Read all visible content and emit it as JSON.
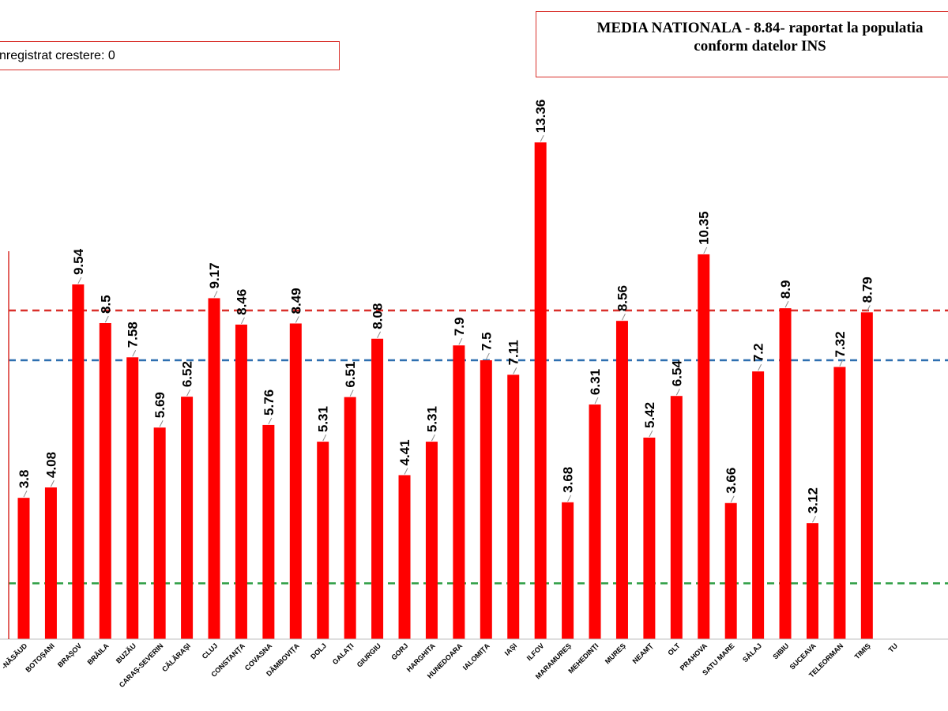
{
  "header": {
    "left_note": "nregistrat crestere: 0",
    "national_title_line1": "MEDIA NATIONALA - 8.84-  raportat la populatia",
    "national_title_line2": "conform datelor INS"
  },
  "chart_data": {
    "type": "bar",
    "categories": [
      "-NĂSĂUD",
      "BOTOȘANI",
      "BRAȘOV",
      "BRĂILA",
      "BUZĂU",
      "CARAȘ-SEVERIN",
      "CĂLĂRAȘI",
      "CLUJ",
      "CONSTANȚA",
      "COVASNA",
      "DÂMBOVIȚA",
      "DOLJ",
      "GALAȚI",
      "GIURGIU",
      "GORJ",
      "HARGHITA",
      "HUNEDOARA",
      "IALOMIȚA",
      "IAȘI",
      "ILFOV",
      "MARAMUREȘ",
      "MEHEDINȚI",
      "MUREȘ",
      "NEAMȚ",
      "OLT",
      "PRAHOVA",
      "SATU MARE",
      "SĂLAJ",
      "SIBIU",
      "SUCEAVA",
      "TELEORMAN",
      "TIMIȘ",
      "TU"
    ],
    "values": [
      3.8,
      4.08,
      9.54,
      8.5,
      7.58,
      5.69,
      6.52,
      9.17,
      8.46,
      5.76,
      8.49,
      5.31,
      6.51,
      8.08,
      4.41,
      5.31,
      7.9,
      7.5,
      7.11,
      13.36,
      3.68,
      6.31,
      8.56,
      5.42,
      6.54,
      10.35,
      3.66,
      7.2,
      8.9,
      3.12,
      7.32,
      8.79,
      null
    ],
    "value_labels": [
      "3.8",
      "4.08",
      "9.54",
      "8.5",
      "7.58",
      "5.69",
      "6.52",
      "9.17",
      "8.46",
      "5.76",
      "8.49",
      "5.31",
      "6.51",
      "8.08",
      "4.41",
      "5.31",
      "7.9",
      "7.5",
      "7.11",
      "13.36",
      "3.68",
      "6.31",
      "8.56",
      "5.42",
      "6.54",
      "10.35",
      "3.66",
      "7.2",
      "8.9",
      "3.12",
      "7.32",
      "8.79",
      ""
    ],
    "bar_color": "#ff0000",
    "reference_lines": [
      {
        "value": 8.84,
        "color": "#d9302b",
        "style": "dashed"
      },
      {
        "value": 7.5,
        "color": "#2e6fb0",
        "style": "dashed"
      },
      {
        "value": 1.5,
        "color": "#2f9e44",
        "style": "dashed"
      }
    ],
    "ylim": [
      0,
      14
    ],
    "grid": false,
    "title": "",
    "xlabel": "",
    "ylabel": ""
  }
}
